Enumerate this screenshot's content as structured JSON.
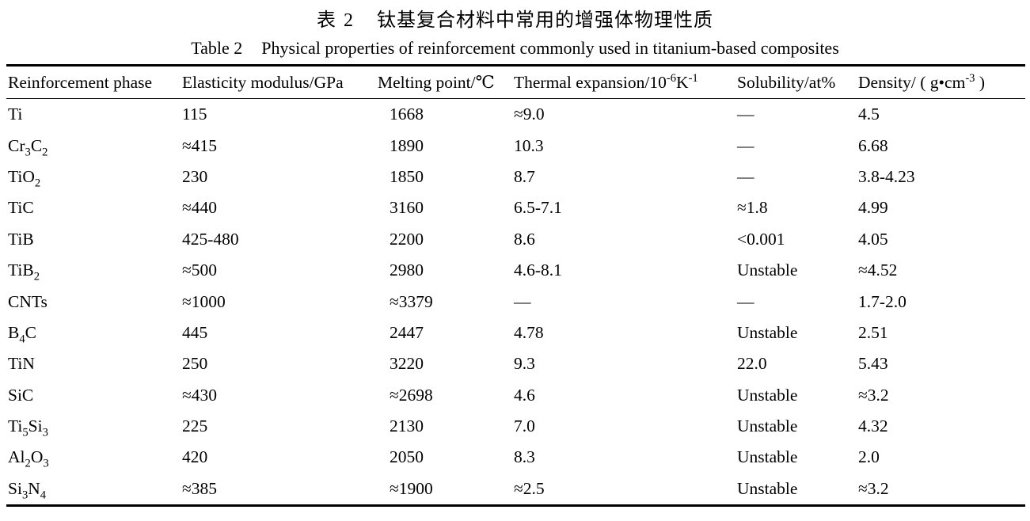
{
  "caption": {
    "zh_label": "表 2",
    "zh_text": "钛基复合材料中常用的增强体物理性质",
    "en_label": "Table 2",
    "en_text": "Physical properties of reinforcement commonly used in titanium-based composites"
  },
  "table": {
    "columns": [
      {
        "key": "phase",
        "label": "Reinforcement phase"
      },
      {
        "key": "elasticity",
        "label": "Elasticity modulus/GPa"
      },
      {
        "key": "melting",
        "label": "Melting point/℃"
      },
      {
        "key": "thermal",
        "label": "Thermal expansion/10^-6^K^-1^"
      },
      {
        "key": "solubility",
        "label": "Solubility/at%"
      },
      {
        "key": "density",
        "label": "Density/ ( g•cm^-3^ )"
      }
    ],
    "rows": [
      [
        "Ti",
        "115",
        "1668",
        "≈9.0",
        "—",
        "4.5"
      ],
      [
        "Cr~3~C~2~",
        "≈415",
        "1890",
        "10.3",
        "—",
        "6.68"
      ],
      [
        "TiO~2~",
        "230",
        "1850",
        "8.7",
        "—",
        "3.8-4.23"
      ],
      [
        "TiC",
        "≈440",
        "3160",
        "6.5-7.1",
        "≈1.8",
        "4.99"
      ],
      [
        "TiB",
        "425-480",
        "2200",
        "8.6",
        "<0.001",
        "4.05"
      ],
      [
        "TiB~2~",
        "≈500",
        "2980",
        "4.6-8.1",
        "Unstable",
        "≈4.52"
      ],
      [
        "CNTs",
        "≈1000",
        "≈3379",
        "—",
        "—",
        "1.7-2.0"
      ],
      [
        "B~4~C",
        "445",
        "2447",
        "4.78",
        "Unstable",
        "2.51"
      ],
      [
        "TiN",
        "250",
        "3220",
        "9.3",
        "22.0",
        "5.43"
      ],
      [
        "SiC",
        "≈430",
        "≈2698",
        "4.6",
        "Unstable",
        "≈3.2"
      ],
      [
        "Ti~5~Si~3~",
        "225",
        "2130",
        "7.0",
        "Unstable",
        "4.32"
      ],
      [
        "Al~2~O~3~",
        "420",
        "2050",
        "8.3",
        "Unstable",
        "2.0"
      ],
      [
        "Si~3~N~4~",
        "≈385",
        "≈1900",
        "≈2.5",
        "Unstable",
        "≈3.2"
      ]
    ]
  }
}
